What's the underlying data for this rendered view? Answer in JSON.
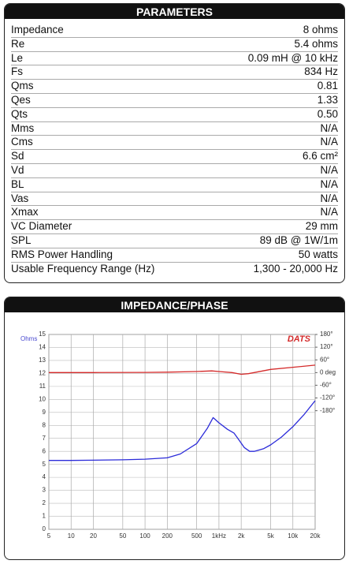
{
  "parameters": {
    "title": "PARAMETERS",
    "rows": [
      [
        "Impedance",
        "8 ohms"
      ],
      [
        "Re",
        "5.4 ohms"
      ],
      [
        "Le",
        "0.09 mH @ 10 kHz"
      ],
      [
        "Fs",
        "834 Hz"
      ],
      [
        "Qms",
        "0.81"
      ],
      [
        "Qes",
        "1.33"
      ],
      [
        "Qts",
        "0.50"
      ],
      [
        "Mms",
        "N/A"
      ],
      [
        "Cms",
        "N/A"
      ],
      [
        "Sd",
        "6.6 cm²"
      ],
      [
        "Vd",
        "N/A"
      ],
      [
        "BL",
        "N/A"
      ],
      [
        "Vas",
        "N/A"
      ],
      [
        "Xmax",
        "N/A"
      ],
      [
        "VC Diameter",
        "29 mm"
      ],
      [
        "SPL",
        "89 dB @ 1W/1m"
      ],
      [
        "RMS Power Handling",
        "50 watts"
      ],
      [
        "Usable Frequency Range (Hz)",
        "1,300 - 20,000 Hz"
      ]
    ]
  },
  "chart_data": {
    "type": "line",
    "title": "IMPEDANCE/PHASE",
    "y_label": "Ohms",
    "logo": "DATS",
    "xscale": "log",
    "grid": true,
    "xlim": [
      5,
      20000
    ],
    "xticks": [
      5,
      10,
      20,
      50,
      100,
      200,
      500,
      {
        "value": 1000,
        "label": "1kHz"
      },
      {
        "value": 2000,
        "label": "2k"
      },
      {
        "value": 5000,
        "label": "5k"
      },
      {
        "value": 10000,
        "label": "10k"
      },
      {
        "value": 20000,
        "label": "20k"
      }
    ],
    "ylim": [
      0,
      15
    ],
    "yticks": [
      0,
      1,
      2,
      3,
      4,
      5,
      6,
      7,
      8,
      9,
      10,
      11,
      12,
      13,
      14,
      15
    ],
    "y2lim": [
      -740,
      180
    ],
    "y2ticks": [
      {
        "value": 180,
        "label": "180°"
      },
      {
        "value": 120,
        "label": "120°"
      },
      {
        "value": 60,
        "label": "60°"
      },
      {
        "value": 0,
        "label": "0 deg"
      },
      {
        "value": -60,
        "label": "-60°"
      },
      {
        "value": -120,
        "label": "-120°"
      },
      {
        "value": -180,
        "label": "-180°"
      }
    ],
    "series": [
      {
        "color": "#2b2bd9",
        "x": [
          5,
          10,
          20,
          50,
          100,
          200,
          300,
          500,
          700,
          834,
          1000,
          1300,
          1600,
          1800,
          2200,
          2600,
          3000,
          4000,
          5000,
          7000,
          10000,
          14000,
          20000
        ],
        "values": [
          5.3,
          5.3,
          5.32,
          5.35,
          5.4,
          5.5,
          5.8,
          6.6,
          7.8,
          8.6,
          8.2,
          7.7,
          7.4,
          7.0,
          6.3,
          6.0,
          6.0,
          6.2,
          6.5,
          7.1,
          7.9,
          8.8,
          9.9
        ]
      },
      {
        "color": "#d42a2a",
        "axis": "y2",
        "x": [
          5,
          20,
          100,
          200,
          500,
          800,
          1000,
          1500,
          2000,
          2500,
          3000,
          5000,
          10000,
          20000
        ],
        "values": [
          0,
          0,
          1,
          2,
          5,
          8,
          5,
          0,
          -8,
          -5,
          0,
          15,
          25,
          35
        ]
      }
    ]
  }
}
